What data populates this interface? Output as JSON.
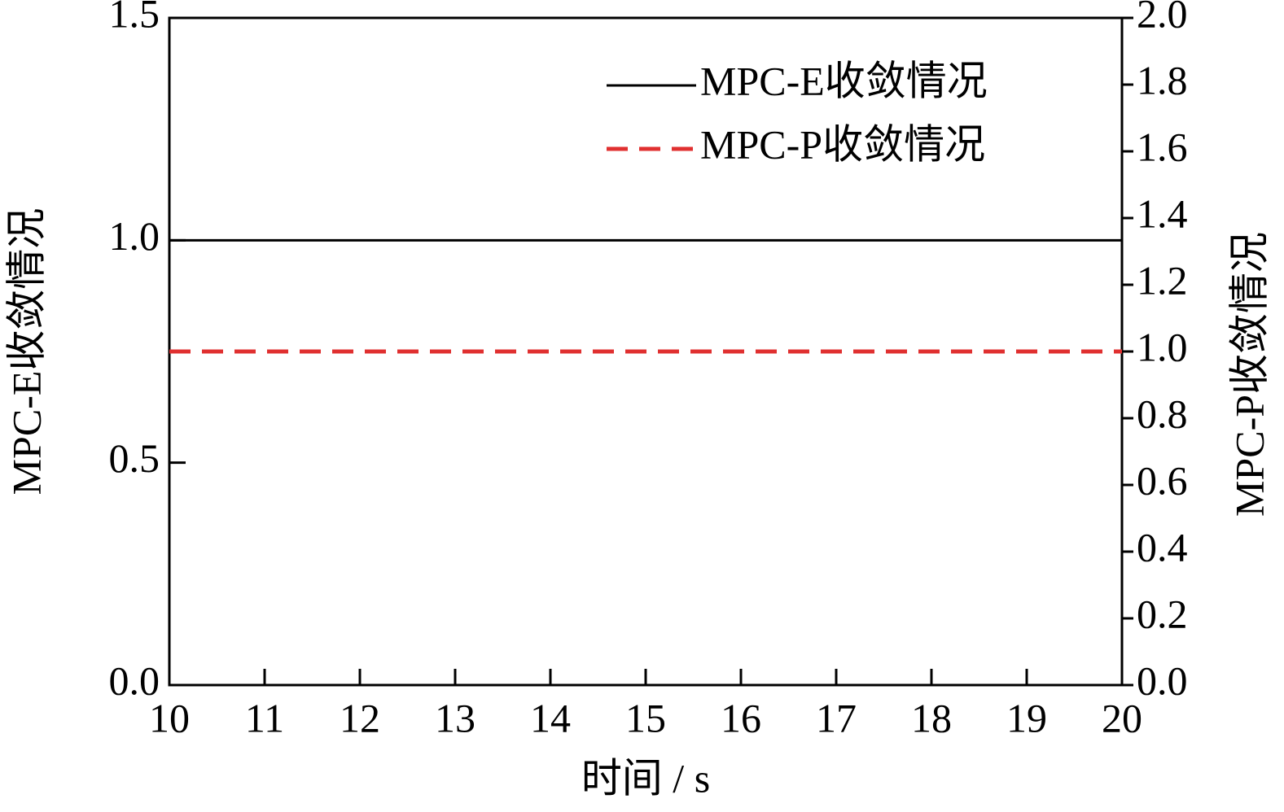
{
  "chart_data": {
    "type": "line",
    "xlabel": "时间 / s",
    "ylabel": "MPC-E收敛情况",
    "y2label": "MPC-P收敛情况",
    "x": [
      10,
      20
    ],
    "series": [
      {
        "name": "MPC-E收敛情况",
        "color": "#000000",
        "dash": false,
        "values": [
          1,
          1
        ]
      },
      {
        "name": "MPC-P收敛情况",
        "color": "#e03030",
        "dash": true,
        "axis": "y2",
        "values": [
          1,
          1
        ]
      }
    ],
    "xlim": [
      10,
      20
    ],
    "xticks": [
      10,
      11,
      12,
      13,
      14,
      15,
      16,
      17,
      18,
      19,
      20
    ],
    "ylim": [
      0,
      1.5
    ],
    "yticks": [
      {
        "value": 0,
        "label": "0.0"
      },
      0.5,
      {
        "value": 1,
        "label": "1.0"
      },
      1.5
    ],
    "y2lim": [
      0,
      2
    ],
    "y2ticks": [
      {
        "value": 0,
        "label": "0.0"
      },
      0.2,
      0.4,
      0.6,
      0.8,
      {
        "value": 1,
        "label": "1.0"
      },
      1.2,
      1.4,
      1.6,
      1.8,
      {
        "value": 2,
        "label": "2.0"
      }
    ],
    "legend": "upper right"
  }
}
